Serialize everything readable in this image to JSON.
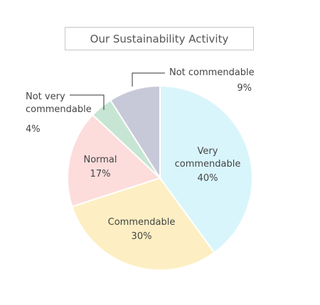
{
  "chart_data": {
    "type": "pie",
    "title": "Our Sustainability Activity",
    "slices": [
      {
        "label_lines": [
          "Very",
          "commendable"
        ],
        "value": 40,
        "value_label": "40%",
        "color": "#d9f5fc"
      },
      {
        "label_lines": [
          "Commendable"
        ],
        "value": 30,
        "value_label": "30%",
        "color": "#fdefc3"
      },
      {
        "label_lines": [
          "Normal"
        ],
        "value": 17,
        "value_label": "17%",
        "color": "#fddcdc"
      },
      {
        "label_lines": [
          "Not very",
          "commendable"
        ],
        "value": 4,
        "value_label": "4%",
        "color": "#c6e6d3"
      },
      {
        "label_lines": [
          "Not commendable"
        ],
        "value": 9,
        "value_label": "9%",
        "color": "#c8c9d8"
      }
    ]
  }
}
